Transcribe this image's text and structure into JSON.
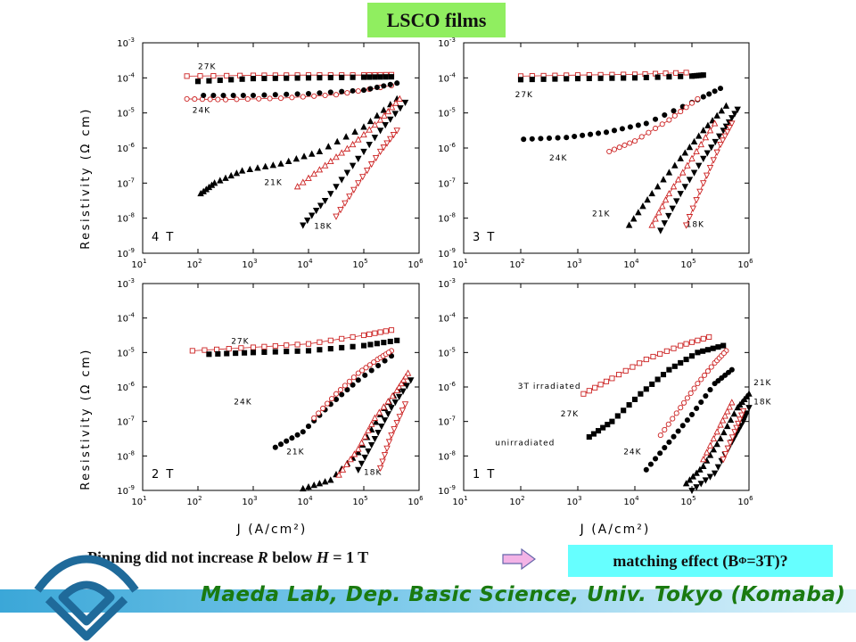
{
  "title": "LSCO films",
  "caption": {
    "prefix": "Pinning did not increase ",
    "r": "R",
    "mid": " below ",
    "h": "H",
    "suffix": " = 1 T"
  },
  "conclusion": {
    "text": "matching effect (B",
    "sub": "Φ",
    "text2": "=3T)?"
  },
  "footer": {
    "lab": "Maeda Lab, Dep. Basic Science, Univ. Tokyo (Komaba)"
  },
  "axes": {
    "ylabel": "Resistivity (Ω cm)",
    "xlabel": "J (A/cm²)",
    "x_ticks": [
      1,
      2,
      3,
      4,
      5,
      6
    ],
    "y_ticks": [
      -9,
      -8,
      -7,
      -6,
      -5,
      -4,
      -3
    ],
    "x_range_log10": [
      1,
      6
    ],
    "y_range_log10": [
      -9,
      -3
    ]
  },
  "colors": {
    "red": "#cc2222",
    "black": "#000000",
    "title_bg": "#90ee60",
    "box_bg": "#66ffff",
    "footer_text": "#1a7a10"
  },
  "chart_data": [
    {
      "type": "scatter",
      "field": "4 T",
      "xscale": "log",
      "yscale": "log",
      "series": [
        {
          "name": "27K",
          "color": "red",
          "marker": "open-square",
          "points": [
            [
              1.8,
              -3.95
            ],
            [
              3,
              -3.93
            ],
            [
              4,
              -3.92
            ],
            [
              5,
              -3.92
            ],
            [
              5.5,
              -3.91
            ]
          ]
        },
        {
          "name": "",
          "color": "black",
          "marker": "filled-square",
          "points": [
            [
              2.0,
              -4.1
            ],
            [
              3,
              -4.02
            ],
            [
              4,
              -4.0
            ],
            [
              5,
              -3.98
            ],
            [
              5.5,
              -3.97
            ]
          ]
        },
        {
          "name": "24K",
          "color": "red",
          "marker": "open-circle",
          "points": [
            [
              1.8,
              -4.6
            ],
            [
              2.5,
              -4.62
            ],
            [
              3.5,
              -4.58
            ],
            [
              4.5,
              -4.48
            ],
            [
              5.5,
              -4.22
            ]
          ]
        },
        {
          "name": "",
          "color": "black",
          "marker": "filled-circle",
          "points": [
            [
              2.1,
              -4.5
            ],
            [
              3,
              -4.5
            ],
            [
              4,
              -4.45
            ],
            [
              5,
              -4.35
            ],
            [
              5.6,
              -4.15
            ]
          ]
        },
        {
          "name": "",
          "color": "black",
          "marker": "filled-triangle-up",
          "points": [
            [
              2.05,
              -7.3
            ],
            [
              2.3,
              -7.0
            ],
            [
              2.8,
              -6.65
            ],
            [
              3.5,
              -6.45
            ],
            [
              4.2,
              -6.1
            ],
            [
              5,
              -5.4
            ],
            [
              5.6,
              -4.6
            ]
          ]
        },
        {
          "name": "21K",
          "color": "red",
          "marker": "open-triangle-up",
          "points": [
            [
              3.8,
              -7.1
            ],
            [
              4.3,
              -6.5
            ],
            [
              4.8,
              -5.9
            ],
            [
              5.3,
              -5.2
            ],
            [
              5.65,
              -4.6
            ]
          ]
        },
        {
          "name": "",
          "color": "black",
          "marker": "filled-triangle-down",
          "points": [
            [
              3.9,
              -8.2
            ],
            [
              4.3,
              -7.5
            ],
            [
              4.8,
              -6.5
            ],
            [
              5.3,
              -5.5
            ],
            [
              5.75,
              -4.7
            ]
          ]
        },
        {
          "name": "18K",
          "color": "red",
          "marker": "open-triangle-down",
          "points": [
            [
              4.5,
              -7.95
            ],
            [
              4.9,
              -7.0
            ],
            [
              5.3,
              -6.1
            ],
            [
              5.6,
              -5.5
            ]
          ]
        }
      ]
    },
    {
      "type": "scatter",
      "field": "3 T",
      "xscale": "log",
      "yscale": "log",
      "series": [
        {
          "name": "27K",
          "color": "red",
          "marker": "open-square",
          "points": [
            [
              2,
              -3.95
            ],
            [
              3,
              -3.92
            ],
            [
              4,
              -3.9
            ],
            [
              4.9,
              -3.85
            ]
          ]
        },
        {
          "name": "",
          "color": "black",
          "marker": "filled-square",
          "points": [
            [
              2,
              -4.05
            ],
            [
              3,
              -4.02
            ],
            [
              4,
              -4.0
            ],
            [
              5,
              -3.95
            ],
            [
              5.2,
              -3.92
            ]
          ]
        },
        {
          "name": "24K",
          "color": "black",
          "marker": "filled-circle",
          "points": [
            [
              2.05,
              -5.75
            ],
            [
              2.8,
              -5.7
            ],
            [
              3.5,
              -5.55
            ],
            [
              4.2,
              -5.3
            ],
            [
              5,
              -4.7
            ],
            [
              5.5,
              -4.3
            ]
          ]
        },
        {
          "name": "",
          "color": "red",
          "marker": "open-circle",
          "points": [
            [
              3.55,
              -6.1
            ],
            [
              4,
              -5.8
            ],
            [
              4.6,
              -5.2
            ],
            [
              5.1,
              -4.6
            ]
          ]
        },
        {
          "name": "21K",
          "color": "black",
          "marker": "filled-triangle-up",
          "points": [
            [
              3.9,
              -8.2
            ],
            [
              4.3,
              -7.3
            ],
            [
              4.8,
              -6.3
            ],
            [
              5.2,
              -5.5
            ],
            [
              5.6,
              -4.8
            ]
          ]
        },
        {
          "name": "",
          "color": "red",
          "marker": "open-triangle-up",
          "points": [
            [
              4.3,
              -8.2
            ],
            [
              4.6,
              -7.3
            ],
            [
              5,
              -6.3
            ],
            [
              5.4,
              -5.3
            ]
          ]
        },
        {
          "name": "18K",
          "color": "black",
          "marker": "filled-triangle-down",
          "points": [
            [
              4.45,
              -8.35
            ],
            [
              4.8,
              -7.3
            ],
            [
              5.2,
              -6.3
            ],
            [
              5.55,
              -5.5
            ],
            [
              5.8,
              -4.9
            ]
          ]
        },
        {
          "name": "",
          "color": "red",
          "marker": "open-triangle-down",
          "points": [
            [
              4.9,
              -8.2
            ],
            [
              5.2,
              -7.0
            ],
            [
              5.5,
              -5.9
            ],
            [
              5.7,
              -5.3
            ]
          ]
        }
      ]
    },
    {
      "type": "scatter",
      "field": "2 T",
      "xscale": "log",
      "yscale": "log",
      "series": [
        {
          "name": "27K",
          "color": "red",
          "marker": "open-square",
          "points": [
            [
              1.9,
              -4.95
            ],
            [
              3,
              -4.85
            ],
            [
              4,
              -4.75
            ],
            [
              5,
              -4.5
            ],
            [
              5.5,
              -4.35
            ]
          ]
        },
        {
          "name": "",
          "color": "black",
          "marker": "filled-square",
          "points": [
            [
              2.2,
              -5.05
            ],
            [
              3,
              -5.0
            ],
            [
              4,
              -4.95
            ],
            [
              5,
              -4.8
            ],
            [
              5.6,
              -4.65
            ]
          ]
        },
        {
          "name": "24K",
          "color": "black",
          "marker": "filled-circle",
          "points": [
            [
              3.4,
              -7.75
            ],
            [
              3.9,
              -7.3
            ],
            [
              4.4,
              -6.5
            ],
            [
              4.9,
              -5.8
            ],
            [
              5.5,
              -5.1
            ]
          ]
        },
        {
          "name": "",
          "color": "red",
          "marker": "open-circle",
          "points": [
            [
              4.1,
              -6.9
            ],
            [
              4.5,
              -6.2
            ],
            [
              4.9,
              -5.6
            ],
            [
              5.25,
              -5.2
            ],
            [
              5.5,
              -4.95
            ]
          ]
        },
        {
          "name": "21K",
          "color": "black",
          "marker": "filled-triangle-up",
          "points": [
            [
              3.9,
              -8.95
            ],
            [
              4.4,
              -8.7
            ],
            [
              4.9,
              -7.9
            ],
            [
              5.3,
              -6.8
            ],
            [
              5.7,
              -5.9
            ]
          ]
        },
        {
          "name": "",
          "color": "red",
          "marker": "open-triangle-up",
          "points": [
            [
              4.55,
              -8.55
            ],
            [
              4.9,
              -7.8
            ],
            [
              5.2,
              -6.9
            ],
            [
              5.6,
              -6.1
            ],
            [
              5.8,
              -5.6
            ]
          ]
        },
        {
          "name": "18K",
          "color": "black",
          "marker": "filled-triangle-down",
          "points": [
            [
              4.9,
              -8.4
            ],
            [
              5.2,
              -7.5
            ],
            [
              5.5,
              -6.6
            ],
            [
              5.85,
              -5.8
            ]
          ]
        },
        {
          "name": "",
          "color": "red",
          "marker": "open-triangle-down",
          "points": [
            [
              5.3,
              -8.35
            ],
            [
              5.5,
              -7.4
            ],
            [
              5.75,
              -6.5
            ]
          ]
        }
      ]
    },
    {
      "type": "scatter",
      "field": "1 T",
      "xscale": "log",
      "yscale": "log",
      "series": [
        {
          "name": "3T irradiated",
          "color": "red",
          "marker": "open-square",
          "points": [
            [
              3.1,
              -6.2
            ],
            [
              3.6,
              -5.75
            ],
            [
              4.2,
              -5.2
            ],
            [
              4.8,
              -4.8
            ],
            [
              5.3,
              -4.55
            ]
          ]
        },
        {
          "name": "unirradiated",
          "color": "black",
          "marker": "filled-square",
          "points": [
            [
              3.2,
              -7.45
            ],
            [
              3.6,
              -7.0
            ],
            [
              4.1,
              -6.2
            ],
            [
              4.6,
              -5.5
            ],
            [
              5.1,
              -5.0
            ],
            [
              5.55,
              -4.8
            ]
          ]
        },
        {
          "name": "27K",
          "color": "red",
          "marker": "open-circle",
          "points": [
            [
              4.45,
              -7.4
            ],
            [
              4.8,
              -6.6
            ],
            [
              5.1,
              -5.9
            ],
            [
              5.4,
              -5.3
            ],
            [
              5.6,
              -4.95
            ]
          ]
        },
        {
          "name": "24K",
          "color": "black",
          "marker": "filled-circle",
          "points": [
            [
              4.2,
              -8.4
            ],
            [
              4.6,
              -7.6
            ],
            [
              5,
              -6.8
            ],
            [
              5.4,
              -5.9
            ],
            [
              5.7,
              -5.5
            ]
          ]
        },
        {
          "name": "21K",
          "color": "black",
          "marker": "filled-triangle-up",
          "points": [
            [
              4.9,
              -8.8
            ],
            [
              5.2,
              -8.3
            ],
            [
              5.5,
              -7.5
            ],
            [
              5.8,
              -6.6
            ],
            [
              6,
              -6.2
            ]
          ]
        },
        {
          "name": "",
          "color": "red",
          "marker": "open-triangle-up",
          "points": [
            [
              5.2,
              -8.1
            ],
            [
              5.5,
              -7.1
            ],
            [
              5.7,
              -6.45
            ]
          ]
        },
        {
          "name": "18K",
          "color": "black",
          "marker": "filled-triangle-down",
          "points": [
            [
              5.0,
              -9.0
            ],
            [
              5.4,
              -8.5
            ],
            [
              5.7,
              -7.6
            ],
            [
              5.9,
              -7.0
            ],
            [
              6,
              -6.6
            ]
          ]
        },
        {
          "name": "",
          "color": "red",
          "marker": "open-triangle-down",
          "points": [
            [
              5.55,
              -8.1
            ],
            [
              5.75,
              -7.3
            ],
            [
              5.9,
              -6.7
            ]
          ]
        }
      ]
    }
  ]
}
